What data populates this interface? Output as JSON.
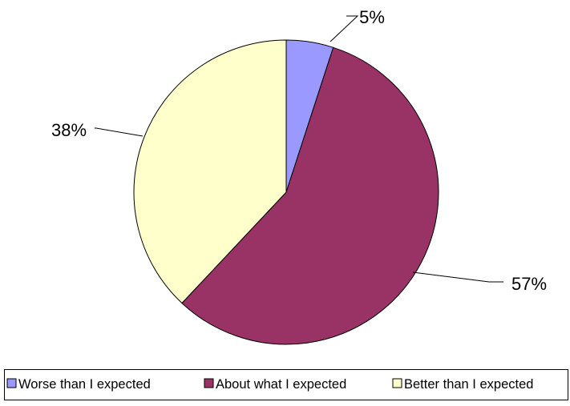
{
  "chart_data": {
    "type": "pie",
    "categories": [
      "Worse than I expected",
      "About what I expected",
      "Better than I expected"
    ],
    "values": [
      5,
      57,
      38
    ],
    "data_labels": [
      "5%",
      "57%",
      "38%"
    ],
    "colors": [
      "#9999ff",
      "#993366",
      "#ffffcc"
    ],
    "start_angle": "top",
    "direction": "clockwise",
    "legend_position": "bottom"
  }
}
